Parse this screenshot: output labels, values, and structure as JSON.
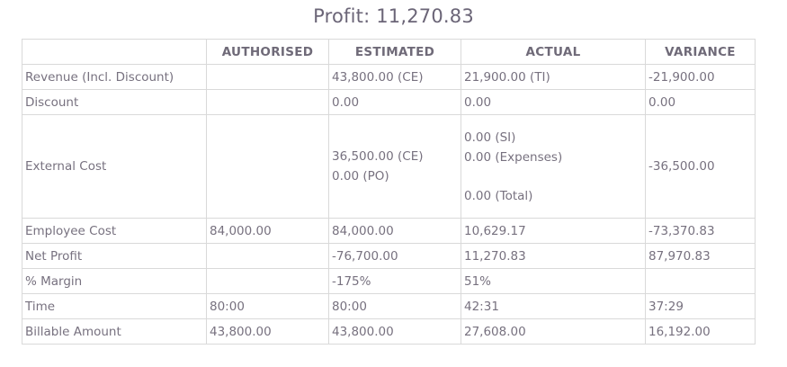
{
  "title": "Profit: 11,270.83",
  "columns": [
    "",
    "AUTHORISED",
    "ESTIMATED",
    "ACTUAL",
    "VARIANCE"
  ],
  "rows": {
    "revenue": {
      "label": "Revenue (Incl. Discount)",
      "authorised": "",
      "estimated": "43,800.00 (CE)",
      "actual": "21,900.00 (TI)",
      "variance": "-21,900.00"
    },
    "discount": {
      "label": "Discount",
      "authorised": "",
      "estimated": "0.00",
      "actual": "0.00",
      "variance": "0.00"
    },
    "external_cost": {
      "label": "External Cost",
      "authorised": "",
      "estimated": [
        "36,500.00 (CE)",
        "0.00 (PO)"
      ],
      "actual": [
        "0.00 (SI)",
        "0.00 (Expenses)",
        "0.00 (Total)"
      ],
      "variance": "-36,500.00"
    },
    "employee_cost": {
      "label": "Employee Cost",
      "authorised": "84,000.00",
      "estimated": "84,000.00",
      "actual": "10,629.17",
      "variance": "-73,370.83"
    },
    "net_profit": {
      "label": "Net Profit",
      "authorised": "",
      "estimated": "-76,700.00",
      "actual": "11,270.83",
      "variance": "87,970.83"
    },
    "margin": {
      "label": "% Margin",
      "authorised": "",
      "estimated": "-175%",
      "actual": "51%",
      "variance": ""
    },
    "time": {
      "label": "Time",
      "authorised": "80:00",
      "estimated": "80:00",
      "actual": "42:31",
      "variance": "37:29"
    },
    "billable_amount": {
      "label": "Billable Amount",
      "authorised": "43,800.00",
      "estimated": "43,800.00",
      "actual": "27,608.00",
      "variance": "16,192.00"
    }
  }
}
